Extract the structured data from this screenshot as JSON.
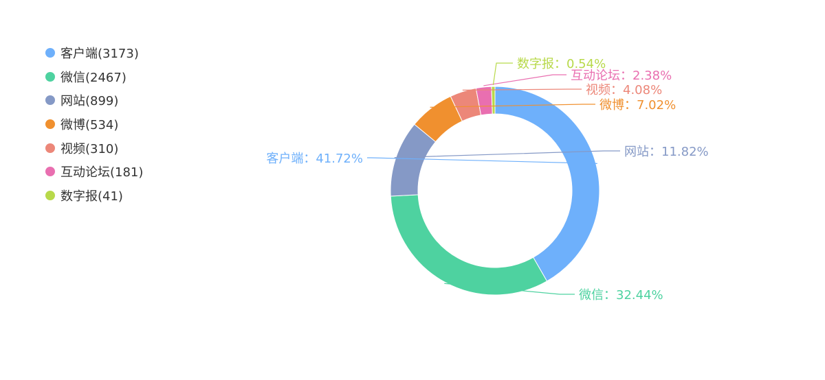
{
  "chart_data": {
    "type": "pie",
    "variant": "donut",
    "categories": [
      "客户端",
      "微信",
      "网站",
      "微博",
      "视频",
      "互动论坛",
      "数字报"
    ],
    "values": [
      3173,
      2467,
      899,
      534,
      310,
      181,
      41
    ],
    "percent_labels": [
      "41.72%",
      "32.44%",
      "11.82%",
      "7.02%",
      "4.08%",
      "2.38%",
      "0.54%"
    ],
    "colors": [
      "#6eb0fb",
      "#4ed2a0",
      "#8599c6",
      "#f0902f",
      "#ec8779",
      "#e96fb0",
      "#b8d94a"
    ],
    "legend_position": "top-left",
    "legend_labels": [
      "客户端(3173)",
      "微信(2467)",
      "网站(899)",
      "微博(534)",
      "视频(310)",
      "互动论坛(181)",
      "数字报(41)"
    ]
  }
}
